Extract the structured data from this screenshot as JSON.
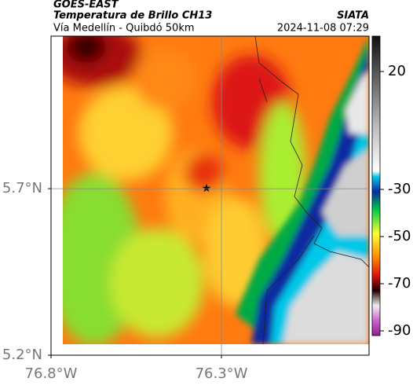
{
  "map": {
    "header": {
      "satellite": "GOES-EAST",
      "title": "Temperatura de Brillo CH13",
      "subtitle": "Vía Medellín - Quibdó 50km",
      "source": "SIATA",
      "datetime": "2024-11-08 07:29"
    },
    "xlim": [
      -76.8,
      -75.867
    ],
    "ylim": [
      5.2,
      6.158
    ],
    "xticks": [
      {
        "value": -76.8,
        "label": "76.8°W"
      },
      {
        "value": -76.3,
        "label": "76.3°W"
      }
    ],
    "yticks": [
      {
        "value": 5.2,
        "label": "5.2°N"
      },
      {
        "value": 5.7,
        "label": "5.7°N"
      }
    ],
    "grid": true,
    "colorbar": {
      "lim": [
        35,
        -92
      ],
      "ticks": [
        20,
        -30,
        -50,
        -70,
        -90
      ]
    }
  }
}
